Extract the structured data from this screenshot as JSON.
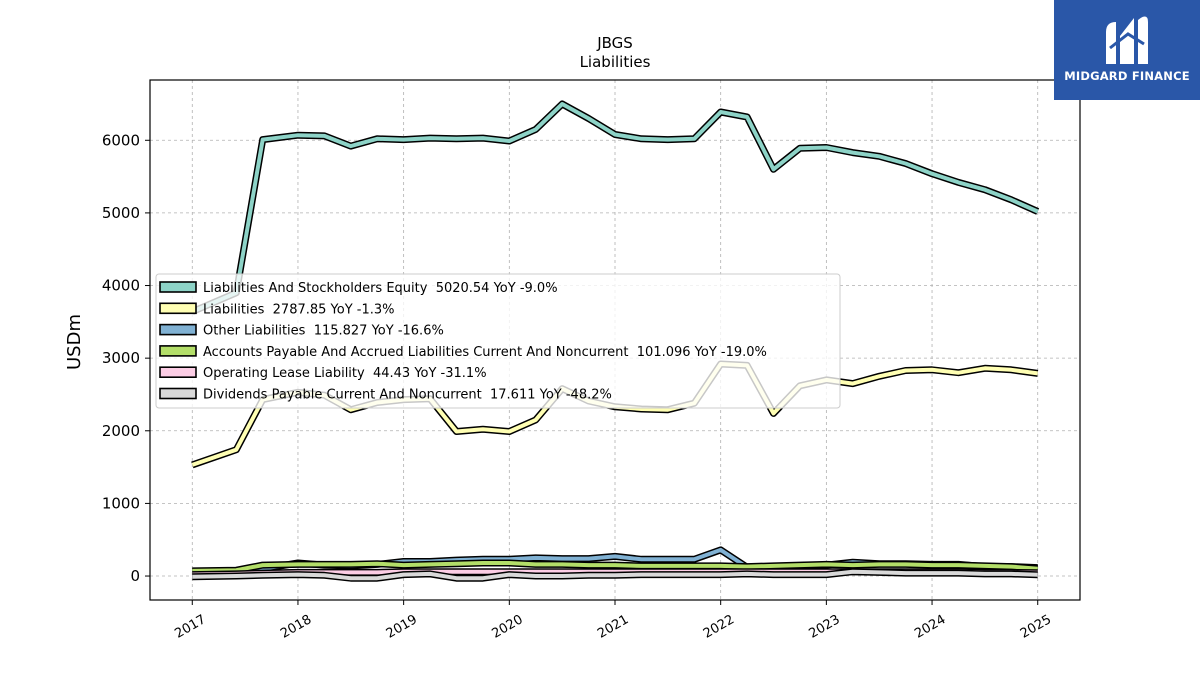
{
  "chart_data": {
    "type": "line",
    "title": "JBGS",
    "subtitle": "Liabilities",
    "ylabel": "USDm",
    "xlabel": "",
    "ylim": [
      -330,
      6830
    ],
    "xlim": [
      2016.6,
      2025.4
    ],
    "yticks": [
      0,
      1000,
      2000,
      3000,
      4000,
      5000,
      6000
    ],
    "xticks": [
      "2017",
      "2018",
      "2019",
      "2020",
      "2021",
      "2022",
      "2023",
      "2024",
      "2025"
    ],
    "grid": true,
    "legend_position": "center-left",
    "x": [
      "2017-01",
      "2017-06",
      "2017-09",
      "2018-01",
      "2018-04",
      "2018-07",
      "2018-10",
      "2019-01",
      "2019-04",
      "2019-07",
      "2019-10",
      "2020-01",
      "2020-04",
      "2020-07",
      "2020-10",
      "2021-01",
      "2021-04",
      "2021-07",
      "2021-10",
      "2022-01",
      "2022-04",
      "2022-07",
      "2022-10",
      "2023-01",
      "2023-04",
      "2023-07",
      "2023-10",
      "2024-01",
      "2024-04",
      "2024-07",
      "2024-10",
      "2025-01"
    ],
    "series": [
      {
        "name": "Liabilities And Stockholders Equity",
        "label": "Liabilities And Stockholders Equity  5020.54 YoY -9.0%",
        "color": "#8dd3c7",
        "values": [
          3640,
          3900,
          6010,
          6070,
          6060,
          5920,
          6020,
          6010,
          6030,
          6020,
          6030,
          5990,
          6150,
          6500,
          6300,
          6080,
          6020,
          6010,
          6020,
          6390,
          6320,
          5600,
          5890,
          5900,
          5830,
          5780,
          5680,
          5540,
          5420,
          5320,
          5180,
          5020
        ]
      },
      {
        "name": "Liabilities",
        "label": "Liabilities  2787.85 YoY -1.3%",
        "color": "#ffffb3",
        "values": [
          1530,
          1740,
          2430,
          2530,
          2490,
          2290,
          2390,
          2430,
          2440,
          1990,
          2020,
          1990,
          2150,
          2580,
          2410,
          2330,
          2300,
          2290,
          2380,
          2920,
          2900,
          2240,
          2620,
          2700,
          2650,
          2750,
          2830,
          2840,
          2800,
          2860,
          2840,
          2790
        ]
      },
      {
        "name": "Other Liabilities",
        "label": "Other Liabilities  115.827 YoY -16.6%",
        "color": "#80b1d3",
        "values": [
          60,
          70,
          100,
          180,
          150,
          140,
          160,
          200,
          200,
          220,
          230,
          230,
          250,
          240,
          240,
          270,
          230,
          230,
          230,
          360,
          120,
          130,
          140,
          150,
          190,
          170,
          170,
          160,
          160,
          130,
          130,
          116
        ]
      },
      {
        "name": "Accounts Payable And Accrued Liabilities Current And Noncurrent",
        "label": "Accounts Payable And Accrued Liabilities Current And Noncurrent  101.096 YoY -19.0%",
        "color": "#b3de69",
        "values": [
          70,
          80,
          150,
          160,
          160,
          160,
          170,
          150,
          160,
          170,
          180,
          180,
          160,
          160,
          150,
          150,
          140,
          140,
          140,
          140,
          130,
          140,
          150,
          160,
          150,
          160,
          160,
          150,
          150,
          140,
          130,
          101
        ]
      },
      {
        "name": "Operating Lease Liability",
        "label": "Operating Lease Liability  44.43 YoY -31.1%",
        "color": "#fccde5",
        "values": [
          20,
          30,
          40,
          50,
          50,
          50,
          50,
          60,
          60,
          60,
          60,
          60,
          60,
          60,
          60,
          60,
          60,
          60,
          60,
          60,
          60,
          60,
          60,
          60,
          60,
          60,
          60,
          60,
          60,
          50,
          50,
          44
        ]
      },
      {
        "name": "Dividends Payable Current And Noncurrent",
        "label": "Dividends Payable Current And Noncurrent  17.611 YoY -48.2%",
        "color": "#d9d9d9",
        "values": [
          -10,
          0,
          10,
          20,
          10,
          -30,
          -30,
          20,
          30,
          -30,
          -30,
          20,
          0,
          0,
          10,
          10,
          20,
          20,
          20,
          20,
          30,
          20,
          20,
          20,
          60,
          50,
          40,
          40,
          40,
          30,
          30,
          18
        ]
      }
    ]
  },
  "logo": {
    "name": "MIDGARD FINANCE",
    "bg": "#2a57a8"
  }
}
